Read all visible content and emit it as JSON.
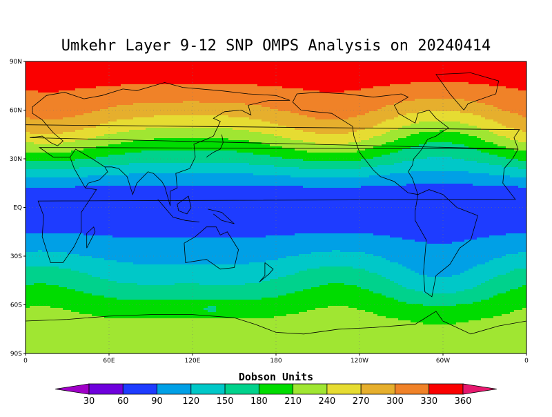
{
  "title": "Umkehr Layer 9-12 SNP OMPS Analysis on 20240414",
  "lat_labels": [
    "90N",
    "60N",
    "30N",
    "EQ",
    "30S",
    "60S",
    "90S"
  ],
  "lon_labels": [
    "0",
    "60E",
    "120E",
    "180",
    "120W",
    "60W",
    "0"
  ],
  "colorbar": {
    "title": "Dobson Units",
    "ticks": [
      "30",
      "60",
      "90",
      "120",
      "150",
      "180",
      "210",
      "240",
      "270",
      "300",
      "330",
      "360"
    ],
    "colors": [
      "#a000c8",
      "#6e00dc",
      "#1e3cff",
      "#00a0e6",
      "#00c8c8",
      "#00d28c",
      "#00dc00",
      "#a0e632",
      "#e6dc32",
      "#e6af2d",
      "#f08228",
      "#fa0000",
      "#e6186e"
    ]
  },
  "chart_data": {
    "type": "heatmap",
    "title": "Umkehr Layer 9-12 SNP OMPS Analysis on 20240414",
    "units": "Dobson Units",
    "lat_range": [
      -90,
      90
    ],
    "lon_range": [
      0,
      360
    ],
    "zonal_profile": [
      {
        "lat": 90,
        "value": 360
      },
      {
        "lat": 80,
        "value": 340
      },
      {
        "lat": 70,
        "value": 320
      },
      {
        "lat": 60,
        "value": 295
      },
      {
        "lat": 50,
        "value": 260
      },
      {
        "lat": 40,
        "value": 215
      },
      {
        "lat": 30,
        "value": 170
      },
      {
        "lat": 20,
        "value": 120
      },
      {
        "lat": 10,
        "value": 75
      },
      {
        "lat": 0,
        "value": 70
      },
      {
        "lat": -10,
        "value": 75
      },
      {
        "lat": -20,
        "value": 95
      },
      {
        "lat": -30,
        "value": 115
      },
      {
        "lat": -40,
        "value": 140
      },
      {
        "lat": -50,
        "value": 165
      },
      {
        "lat": -60,
        "value": 195
      },
      {
        "lat": -70,
        "value": 215
      },
      {
        "lat": -80,
        "value": 220
      },
      {
        "lat": -90,
        "value": 220
      }
    ],
    "grid": true
  }
}
